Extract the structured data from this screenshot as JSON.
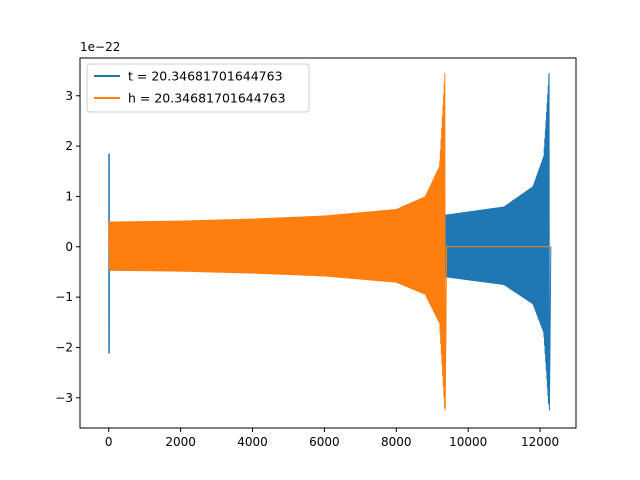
{
  "chart_data": {
    "type": "line",
    "title": "",
    "xlabel": "",
    "ylabel": "",
    "y_offset_label": "1e−22",
    "xlim": [
      -800,
      13000
    ],
    "ylim": [
      -3.6,
      3.75
    ],
    "x_ticks": [
      0,
      2000,
      4000,
      6000,
      8000,
      10000,
      12000
    ],
    "x_tick_labels": [
      "0",
      "2000",
      "4000",
      "6000",
      "8000",
      "10000",
      "12000"
    ],
    "y_ticks": [
      -3,
      -2,
      -1,
      0,
      1,
      2,
      3
    ],
    "y_tick_labels": [
      "−3",
      "−2",
      "−1",
      "0",
      "1",
      "2",
      "3"
    ],
    "grid": false,
    "legend_position": "top-left",
    "series": [
      {
        "name": "t = 20.34681701644763",
        "color": "#1f77b4",
        "description_points": {
          "x_start": 0,
          "x_end": 12300,
          "initial_spike": {
            "x": 0,
            "y_max": 1.85,
            "y_min": -2.12
          },
          "envelope_x": [
            0,
            2000,
            4000,
            6000,
            8000,
            9400,
            10000,
            11000,
            11800,
            12100,
            12250
          ],
          "envelope_y": [
            0.5,
            0.5,
            0.52,
            0.56,
            0.6,
            0.64,
            0.7,
            0.8,
            1.2,
            1.8,
            3.45
          ],
          "peak": {
            "x": 12250,
            "y_max": 3.45,
            "y_min": -3.25
          }
        }
      },
      {
        "name": "h = 20.34681701644763",
        "color": "#ff7f0e",
        "description_points": {
          "x_start": 0,
          "x_end": 12300,
          "envelope_x": [
            0,
            2000,
            4000,
            6000,
            8000,
            8800,
            9200,
            9350
          ],
          "envelope_y": [
            0.5,
            0.52,
            0.56,
            0.62,
            0.75,
            1.0,
            1.6,
            3.45
          ],
          "peak": {
            "x": 9350,
            "y_max": 3.45,
            "y_min": -3.25
          },
          "flat_after_x": 9400,
          "flat_value": 0
        }
      }
    ]
  }
}
